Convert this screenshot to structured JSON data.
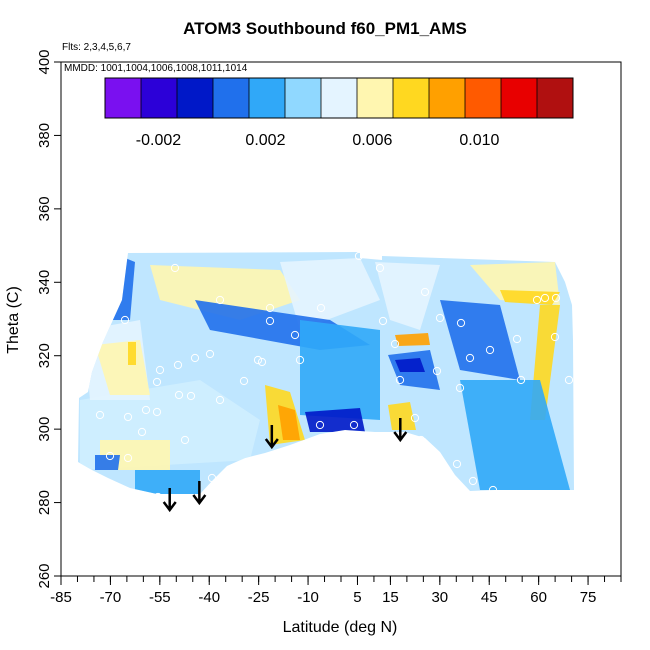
{
  "chart_data": {
    "type": "heatmap",
    "title": "ATOM3 Southbound f60_PM1_AMS",
    "flights_note": "Flts: 2,3,4,5,6,7",
    "dates_note": "MMDD: 1001,1004,1006,1008,1011,1014",
    "xlabel": "Latitude (deg N)",
    "ylabel": "Theta (C)",
    "xlim": [
      -85,
      85
    ],
    "ylim": [
      260,
      400
    ],
    "x_tick_labels": [
      "-85",
      "-70",
      "-55",
      "-40",
      "-25",
      "-10",
      "5",
      "15",
      "30",
      "45",
      "60",
      "75"
    ],
    "x_tick_values": [
      -85,
      -70,
      -55,
      -40,
      -25,
      -10,
      5,
      15,
      30,
      45,
      60,
      75
    ],
    "y_tick_labels": [
      "260",
      "280",
      "300",
      "320",
      "340",
      "360",
      "380",
      "400"
    ],
    "y_tick_values": [
      260,
      280,
      300,
      320,
      340,
      360,
      380,
      400
    ],
    "colorbar": {
      "range": [
        -0.004,
        0.0135
      ],
      "tick_labels": [
        "-0.002",
        "0.002",
        "0.006",
        "0.010"
      ],
      "tick_values": [
        -0.002,
        0.002,
        0.006,
        0.01
      ],
      "colors": [
        "#7a10f0",
        "#2c00d8",
        "#0018c8",
        "#2070ec",
        "#30a8f8",
        "#90d8ff",
        "#e4f4ff",
        "#fff6b0",
        "#ffd820",
        "#ffa000",
        "#ff5a00",
        "#e80000",
        "#b01010"
      ]
    },
    "arrow_latitudes": [
      -52,
      -43,
      -21,
      18
    ],
    "grid": false,
    "legend": "colorbar top"
  }
}
